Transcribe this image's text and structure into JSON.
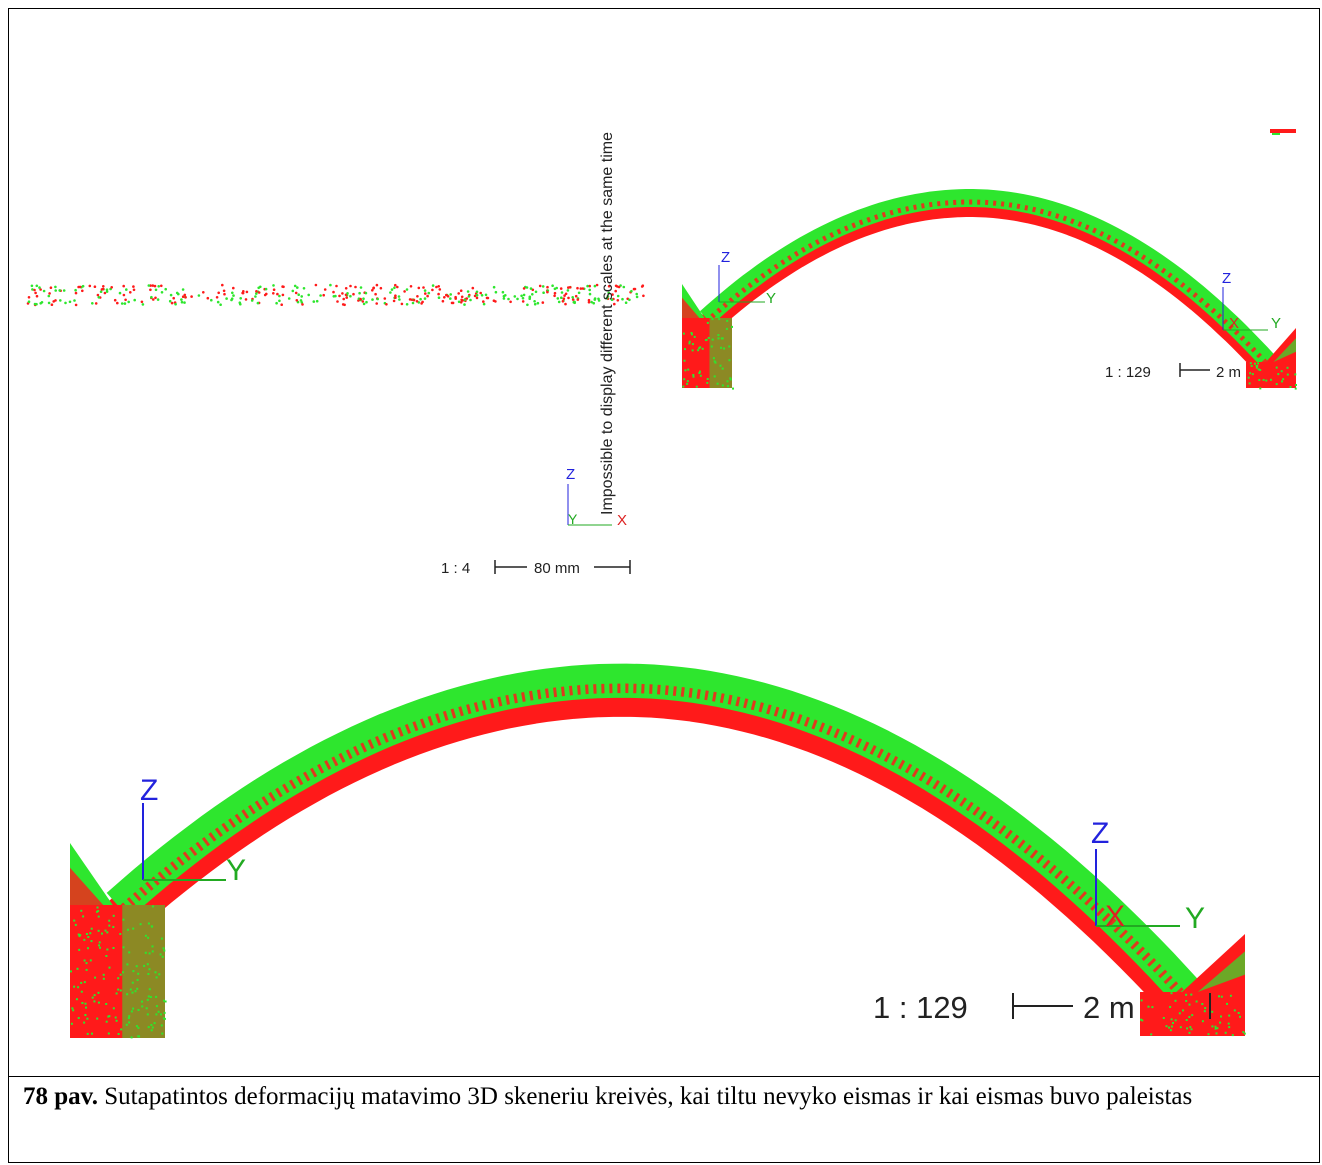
{
  "top_left_view": {
    "message": "Impossible to display different scales at the same time",
    "axis_z": "Z",
    "axis_y": "Y",
    "axis_x": "X",
    "scale_ratio": "1 : 4",
    "scale_length": "80 mm"
  },
  "top_right_view": {
    "axis_z_left": "Z",
    "axis_y_left": "Y",
    "axis_z_right": "Z",
    "axis_x_right": "X",
    "axis_y_right": "Y",
    "scale_ratio": "1 : 129",
    "scale_length": "2 m"
  },
  "bottom_view": {
    "axis_z_left": "Z",
    "axis_y_left": "Y",
    "axis_z_right": "Z",
    "axis_x_right": "X",
    "axis_y_right": "Y",
    "scale_ratio": "1 : 129",
    "scale_length": "2 m"
  },
  "colors": {
    "scan_before": "#ff1a1a",
    "scan_after": "#2ee62e",
    "axis_z": "#2222dd",
    "axis_x": "#dd2222",
    "axis_y": "#22aa22",
    "label_text": "#222222"
  },
  "caption": {
    "number": "78 pav.",
    "text": " Sutapatintos deformacijų matavimo 3D skeneriu kreivės, kai tiltu nevyko eismas ir kai eismas buvo paleistas"
  }
}
